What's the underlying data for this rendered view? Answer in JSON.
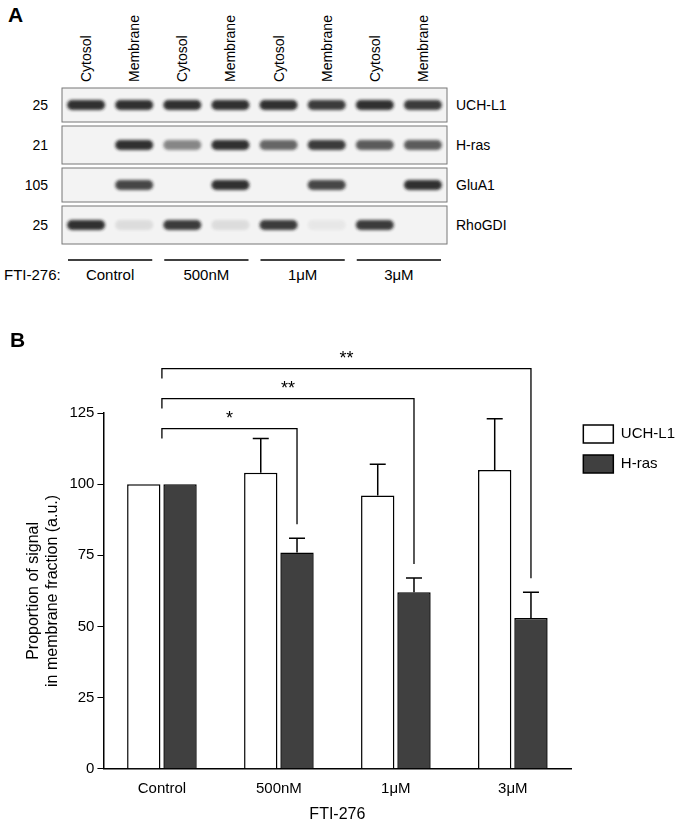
{
  "panel_a": {
    "panel_label": "A",
    "lanes": [
      "Cytosol",
      "Membrane",
      "Cytosol",
      "Membrane",
      "Cytosol",
      "Membrane",
      "Cytosol",
      "Membrane"
    ],
    "blots": [
      {
        "name": "UCH-L1",
        "mw": 25,
        "band_intensity": [
          0.9,
          0.9,
          0.9,
          0.9,
          0.9,
          0.85,
          0.9,
          0.85
        ]
      },
      {
        "name": "H-ras",
        "mw": 21,
        "band_intensity": [
          0,
          0.9,
          0.5,
          0.9,
          0.65,
          0.85,
          0.7,
          0.7
        ]
      },
      {
        "name": "GluA1",
        "mw": 105,
        "band_intensity": [
          0,
          0.8,
          0,
          0.9,
          0,
          0.8,
          0,
          0.9
        ]
      },
      {
        "name": "RhoGDI",
        "mw": 25,
        "band_intensity": [
          0.9,
          0.1,
          0.85,
          0.1,
          0.85,
          0.05,
          0.85,
          0
        ]
      }
    ],
    "treatment_label": "FTI-276:",
    "groups": [
      "Control",
      "500nM",
      "1μM",
      "3μM"
    ]
  },
  "chart_data": {
    "panel_label": "B",
    "type": "bar",
    "categories": [
      "Control",
      "500nM",
      "1μM",
      "3μM"
    ],
    "xlabel": "FTI-276",
    "ylabel": [
      "Proportion of signal",
      "in membrane fraction (a.u.)"
    ],
    "ylim": [
      0,
      125
    ],
    "yticks": [
      0,
      25,
      50,
      75,
      100,
      125
    ],
    "grid": false,
    "legend": "right",
    "series": [
      {
        "name": "UCH-L1",
        "color": "#ffffff",
        "values": [
          100,
          104,
          96,
          105
        ],
        "errors": [
          0,
          12,
          11,
          18
        ]
      },
      {
        "name": "H-ras",
        "color": "#404040",
        "values": [
          100,
          76,
          62,
          53
        ],
        "errors": [
          0,
          5,
          5,
          9
        ]
      }
    ],
    "significance": [
      {
        "series": "H-ras",
        "from": "Control",
        "to": "500nM",
        "label": "*"
      },
      {
        "series": "H-ras",
        "from": "Control",
        "to": "1μM",
        "label": "**"
      },
      {
        "series": "H-ras",
        "from": "Control",
        "to": "3μM",
        "label": "**"
      }
    ]
  }
}
